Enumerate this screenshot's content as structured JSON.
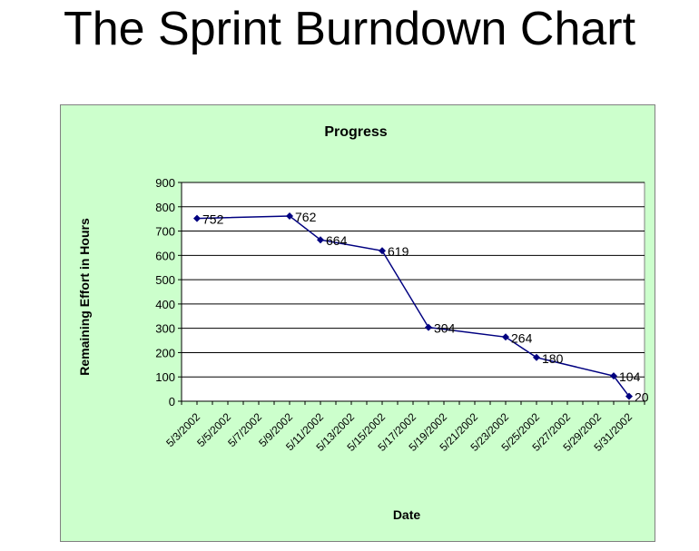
{
  "page": {
    "title": "The Sprint Burndown Chart"
  },
  "chart_data": {
    "type": "line",
    "title": "Progress",
    "xlabel": "Date",
    "ylabel": "Remaining Effort in Hours",
    "ylim": [
      0,
      900
    ],
    "yticks": [
      0,
      100,
      200,
      300,
      400,
      500,
      600,
      700,
      800,
      900
    ],
    "xticks": [
      "5/3/2002",
      "5/5/2002",
      "5/7/2002",
      "5/9/2002",
      "5/11/2002",
      "5/13/2002",
      "5/15/2002",
      "5/17/2002",
      "5/19/2002",
      "5/21/2002",
      "5/23/2002",
      "5/25/2002",
      "5/27/2002",
      "5/29/2002",
      "5/31/2002"
    ],
    "xlim": [
      "5/2/2002",
      "6/1/2002"
    ],
    "grid": true,
    "legend": "none",
    "colors": {
      "background": "#ccffcc",
      "plot": "#ffffff",
      "line": "#000080"
    },
    "series": [
      {
        "points": [
          {
            "x": "5/3/2002",
            "y": 752
          },
          {
            "x": "5/9/2002",
            "y": 762
          },
          {
            "x": "5/11/2002",
            "y": 664
          },
          {
            "x": "5/15/2002",
            "y": 619
          },
          {
            "x": "5/18/2002",
            "y": 304
          },
          {
            "x": "5/23/2002",
            "y": 264
          },
          {
            "x": "5/25/2002",
            "y": 180
          },
          {
            "x": "5/30/2002",
            "y": 104
          },
          {
            "x": "5/31/2002",
            "y": 20
          }
        ]
      }
    ]
  }
}
